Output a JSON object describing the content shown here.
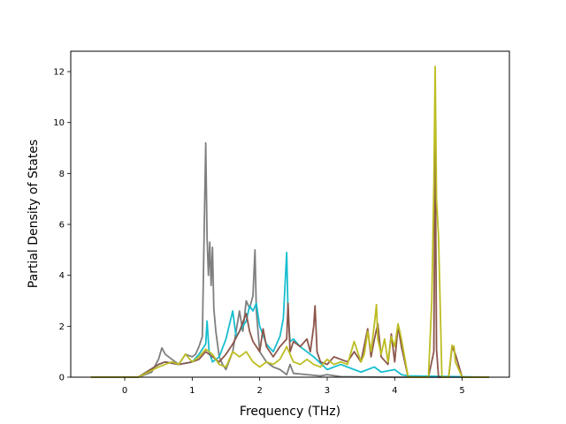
{
  "chart_data": {
    "type": "line",
    "xlabel": "Frequency (THz)",
    "ylabel": "Partial Density of States",
    "xlim": [
      -0.8,
      5.7
    ],
    "ylim": [
      0,
      12.8
    ],
    "xticks": [
      0,
      1,
      2,
      3,
      4,
      5
    ],
    "yticks": [
      0,
      2,
      4,
      6,
      8,
      10,
      12
    ],
    "grid": false,
    "series": [
      {
        "color": "#7f7f7f",
        "x": [
          -0.5,
          0.2,
          0.4,
          0.5,
          0.55,
          0.6,
          0.7,
          0.8,
          0.9,
          1.0,
          1.05,
          1.1,
          1.15,
          1.2,
          1.22,
          1.24,
          1.26,
          1.28,
          1.3,
          1.32,
          1.35,
          1.4,
          1.45,
          1.5,
          1.6,
          1.7,
          1.75,
          1.8,
          1.85,
          1.9,
          1.93,
          1.95,
          2.0,
          2.1,
          2.2,
          2.3,
          2.4,
          2.45,
          2.5,
          2.7,
          2.9,
          3.0,
          3.2,
          3.5,
          4.0,
          5.4
        ],
        "y": [
          0,
          0,
          0.2,
          0.7,
          1.15,
          0.9,
          0.7,
          0.5,
          0.9,
          0.8,
          0.9,
          1.2,
          1.6,
          9.2,
          5.5,
          4.0,
          5.3,
          3.6,
          5.1,
          2.7,
          1.8,
          0.8,
          0.5,
          0.3,
          1.0,
          2.6,
          1.8,
          3.0,
          2.7,
          3.2,
          5.0,
          2.6,
          1.0,
          0.6,
          0.4,
          0.3,
          0.1,
          0.5,
          0.15,
          0.1,
          0.05,
          0.1,
          0.02,
          0.01,
          0,
          0
        ]
      },
      {
        "color": "#17becf",
        "x": [
          -0.5,
          0.2,
          0.5,
          0.6,
          0.8,
          1.0,
          1.1,
          1.2,
          1.22,
          1.25,
          1.3,
          1.4,
          1.5,
          1.6,
          1.65,
          1.7,
          1.8,
          1.85,
          1.9,
          1.95,
          2.0,
          2.1,
          2.2,
          2.3,
          2.35,
          2.4,
          2.42,
          2.45,
          2.5,
          2.6,
          2.7,
          2.8,
          3.0,
          3.2,
          3.5,
          3.7,
          3.8,
          4.0,
          4.1,
          4.2,
          5.4
        ],
        "y": [
          0,
          0,
          0.5,
          0.6,
          0.5,
          0.6,
          0.9,
          1.3,
          2.2,
          1.0,
          0.6,
          0.8,
          1.5,
          2.6,
          1.6,
          1.8,
          2.2,
          2.8,
          2.6,
          2.9,
          2.0,
          1.3,
          1.0,
          1.6,
          2.3,
          4.9,
          2.5,
          1.4,
          1.5,
          1.2,
          1.0,
          0.8,
          0.3,
          0.5,
          0.2,
          0.4,
          0.2,
          0.3,
          0.1,
          0.05,
          0
        ]
      },
      {
        "color": "#8c564b",
        "x": [
          -0.5,
          0.2,
          0.5,
          0.6,
          0.8,
          1.0,
          1.1,
          1.2,
          1.3,
          1.4,
          1.5,
          1.6,
          1.7,
          1.8,
          1.85,
          1.9,
          2.0,
          2.05,
          2.1,
          2.2,
          2.3,
          2.4,
          2.42,
          2.45,
          2.5,
          2.6,
          2.7,
          2.75,
          2.8,
          2.82,
          2.85,
          2.9,
          3.0,
          3.1,
          3.3,
          3.4,
          3.5,
          3.6,
          3.65,
          3.7,
          3.75,
          3.8,
          3.9,
          3.95,
          4.0,
          4.05,
          4.1,
          4.2,
          4.5,
          4.58,
          4.6,
          4.62,
          4.65,
          4.8,
          4.85,
          4.9,
          5.0,
          5.4
        ],
        "y": [
          0,
          0,
          0.5,
          0.6,
          0.5,
          0.6,
          0.7,
          1.0,
          0.8,
          0.6,
          0.9,
          1.3,
          1.8,
          2.5,
          1.8,
          1.4,
          1.0,
          1.9,
          1.2,
          0.8,
          1.2,
          1.5,
          2.9,
          1.0,
          1.4,
          1.2,
          1.5,
          1.0,
          2.0,
          2.8,
          1.0,
          0.6,
          0.5,
          0.8,
          0.6,
          1.0,
          0.6,
          1.9,
          0.8,
          1.5,
          2.1,
          0.8,
          0.5,
          1.7,
          0.6,
          2.0,
          1.2,
          0,
          0,
          1.0,
          9.5,
          1.1,
          0,
          0,
          1.2,
          0.9,
          0,
          0
        ]
      },
      {
        "color": "#bcbd22",
        "x": [
          -0.5,
          0.2,
          0.5,
          0.6,
          0.7,
          0.8,
          0.9,
          1.0,
          1.1,
          1.2,
          1.3,
          1.4,
          1.5,
          1.6,
          1.7,
          1.8,
          1.9,
          2.0,
          2.1,
          2.2,
          2.3,
          2.4,
          2.5,
          2.6,
          2.7,
          2.8,
          2.9,
          3.0,
          3.1,
          3.2,
          3.3,
          3.4,
          3.5,
          3.55,
          3.6,
          3.65,
          3.7,
          3.73,
          3.75,
          3.8,
          3.85,
          3.9,
          3.95,
          4.0,
          4.05,
          4.1,
          4.2,
          4.5,
          4.55,
          4.58,
          4.6,
          4.62,
          4.65,
          4.7,
          4.8,
          4.85,
          4.88,
          4.9,
          5.0,
          5.4
        ],
        "y": [
          0,
          0,
          0.4,
          0.5,
          0.6,
          0.5,
          0.9,
          0.6,
          0.8,
          1.1,
          0.9,
          0.5,
          0.4,
          1.0,
          0.8,
          1.0,
          0.6,
          0.4,
          0.6,
          0.5,
          0.7,
          1.2,
          0.6,
          0.5,
          0.7,
          0.5,
          0.4,
          0.7,
          0.5,
          0.6,
          0.5,
          1.4,
          0.6,
          0.9,
          1.8,
          1.0,
          2.1,
          2.85,
          1.5,
          0.9,
          1.5,
          0.6,
          1.6,
          1.2,
          2.1,
          1.5,
          0,
          0,
          3.0,
          7.5,
          12.2,
          7.0,
          5.5,
          0,
          0,
          1.25,
          1.2,
          0.6,
          0,
          0
        ]
      }
    ]
  }
}
